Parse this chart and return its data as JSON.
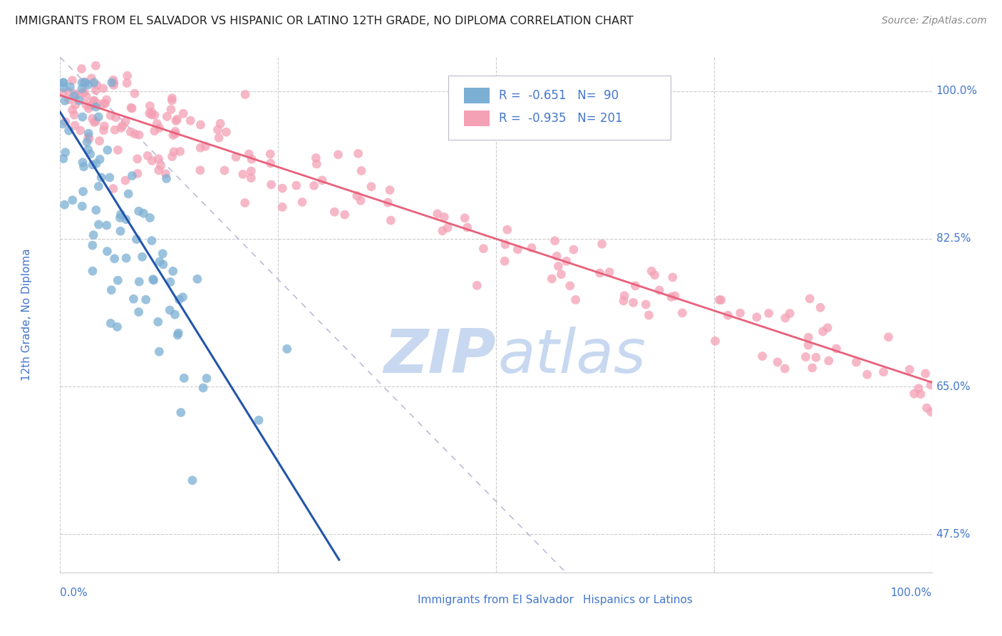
{
  "title": "IMMIGRANTS FROM EL SALVADOR VS HISPANIC OR LATINO 12TH GRADE, NO DIPLOMA CORRELATION CHART",
  "source": "Source: ZipAtlas.com",
  "ylabel": "12th Grade, No Diploma",
  "legend_r_blue": "-0.651",
  "legend_n_blue": "90",
  "legend_r_pink": "-0.935",
  "legend_n_pink": "201",
  "blue_color": "#7BAFD4",
  "pink_color": "#F4A0B5",
  "blue_line_color": "#2255AA",
  "pink_line_color": "#E8607A",
  "dashed_line_color": "#AAAACC",
  "title_color": "#222222",
  "source_color": "#888888",
  "tick_label_color": "#4477CC",
  "background_color": "#FFFFFF",
  "xlim": [
    0.0,
    1.0
  ],
  "ylim": [
    0.43,
    1.04
  ],
  "yticks": [
    1.0,
    0.825,
    0.65,
    0.475
  ],
  "ytick_labels": [
    "100.0%",
    "82.5%",
    "65.0%",
    "47.5%"
  ],
  "blue_line_x": [
    0.0,
    0.32
  ],
  "blue_line_y": [
    0.975,
    0.445
  ],
  "pink_line_x": [
    0.0,
    1.0
  ],
  "pink_line_y": [
    0.995,
    0.655
  ],
  "dashed_line_x": [
    0.0,
    0.58
  ],
  "dashed_line_y": [
    1.04,
    0.43
  ]
}
